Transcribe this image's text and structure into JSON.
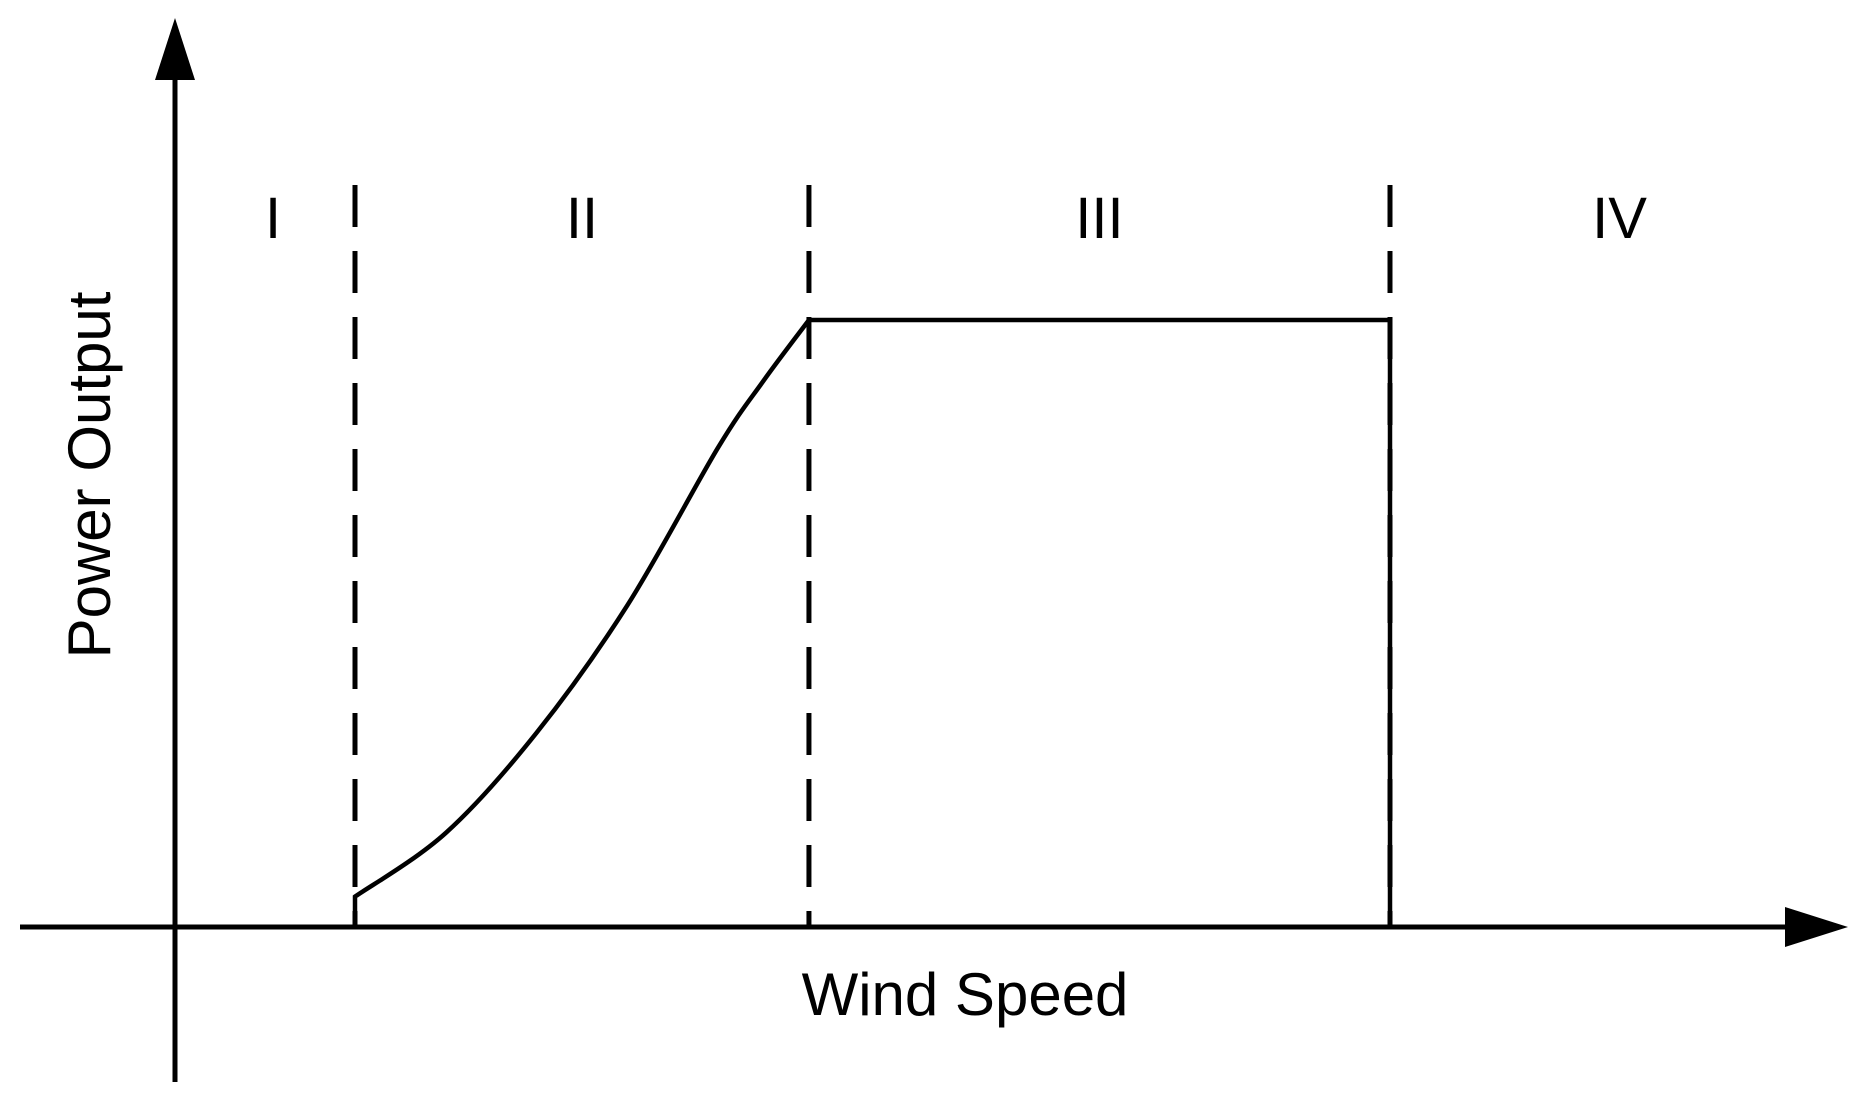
{
  "chart_data": {
    "type": "line",
    "title": "",
    "xlabel": "Wind Speed",
    "ylabel": "Power Output",
    "xlim": [
      0,
      10
    ],
    "ylim": [
      0,
      1.15
    ],
    "grid": false,
    "regions": [
      {
        "label": "I",
        "x_start": 0,
        "x_end": 1.0
      },
      {
        "label": "II",
        "x_start": 1.0,
        "x_end": 3.5
      },
      {
        "label": "III",
        "x_start": 3.5,
        "x_end": 6.7
      },
      {
        "label": "IV",
        "x_start": 6.7,
        "x_end": 10
      }
    ],
    "dividers": [
      1.0,
      3.5,
      6.7
    ],
    "series": [
      {
        "x": [
          1.0,
          1.5,
          2.0,
          2.5,
          3.0,
          3.25,
          3.5,
          6.7,
          6.7
        ],
        "y": [
          0.05,
          0.155,
          0.32,
          0.53,
          0.79,
          0.9,
          1.0,
          1.0,
          0.0
        ]
      }
    ]
  }
}
